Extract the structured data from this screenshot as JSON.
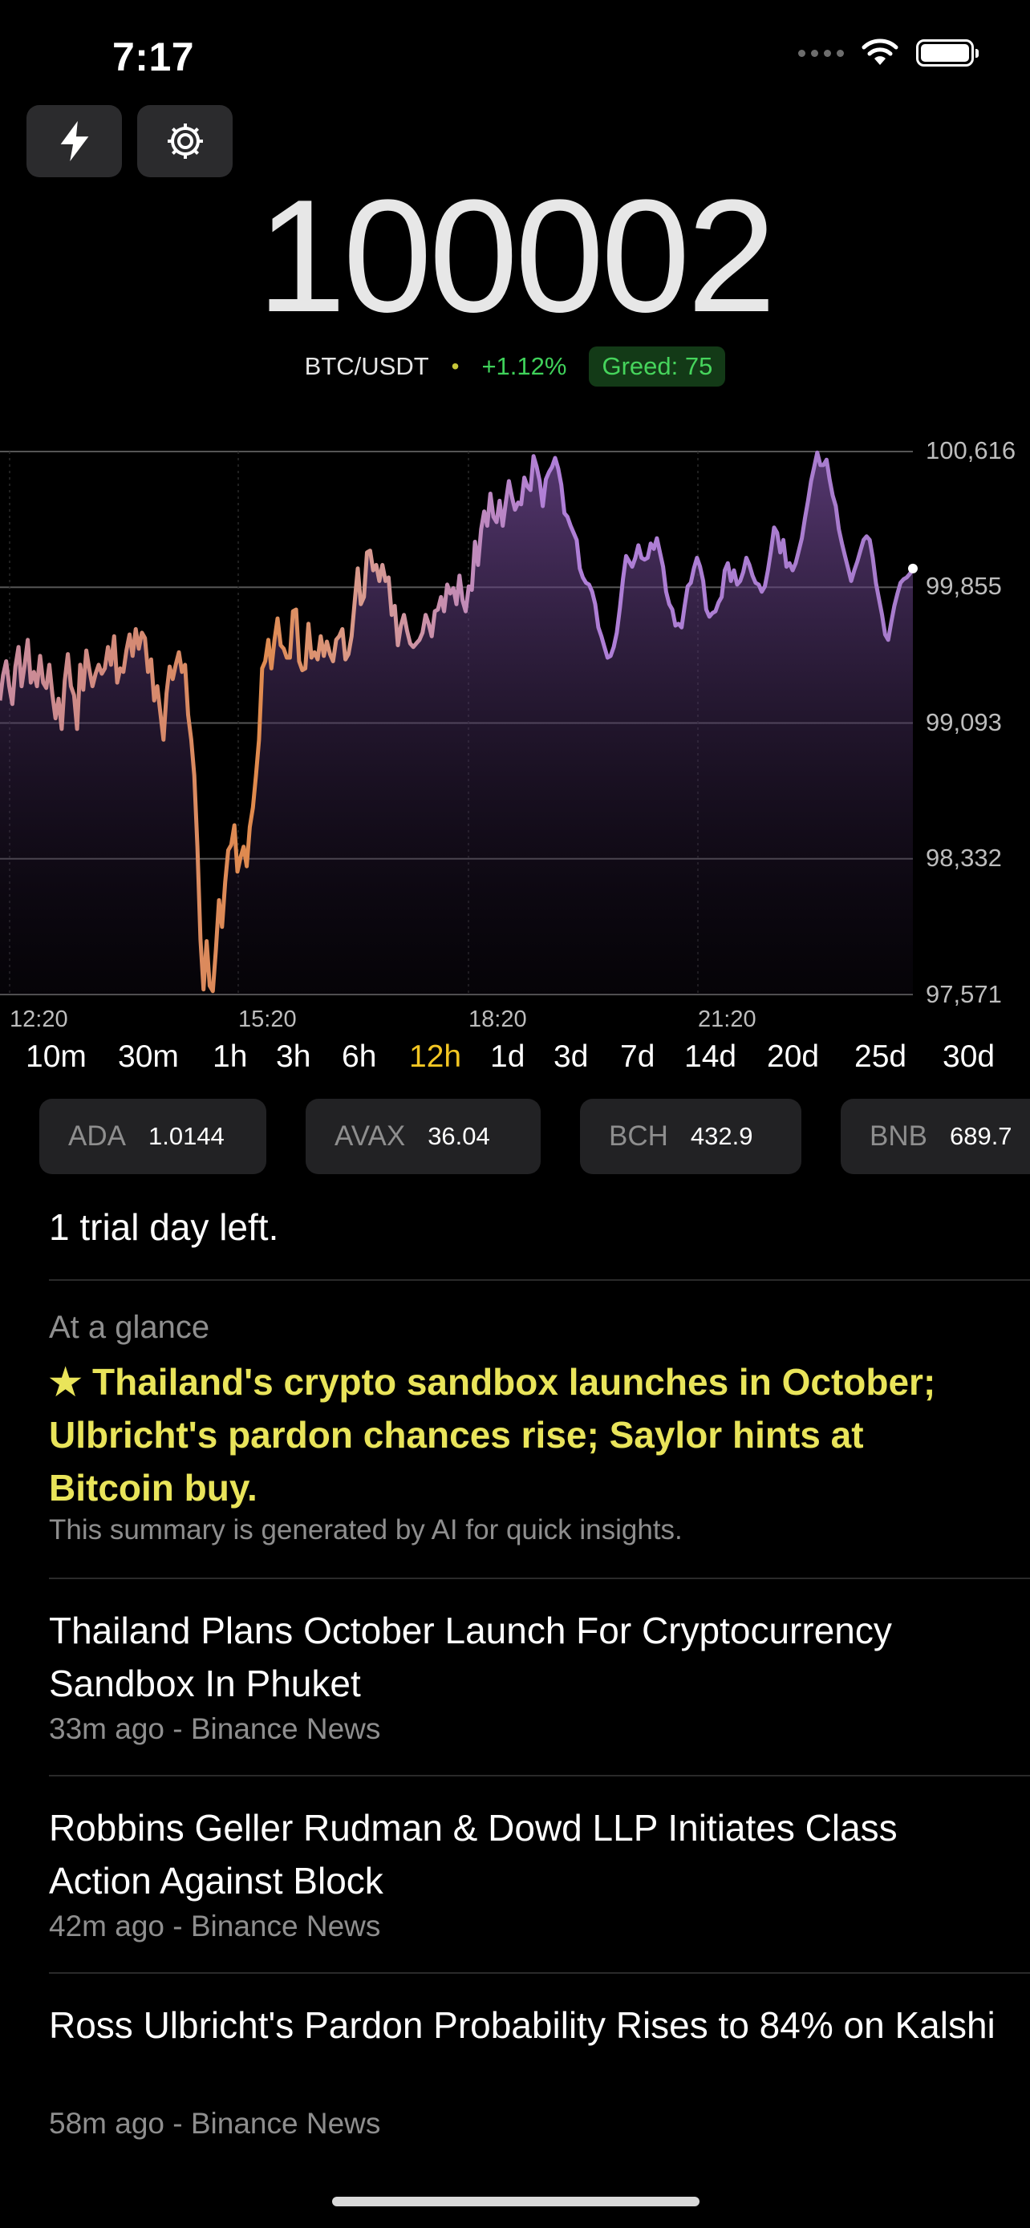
{
  "status_bar": {
    "time": "7:17"
  },
  "price": {
    "value": "100002",
    "pair": "BTC/USDT",
    "separator": "•",
    "change": "+1.12%",
    "greed": "Greed: 75"
  },
  "chart_data": {
    "type": "area",
    "y_ticks": [
      "100,616",
      "99,855",
      "99,093",
      "98,332",
      "97,571"
    ],
    "x_ticks": [
      "12:20",
      "15:20",
      "18:20",
      "21:20"
    ],
    "ylim": [
      97571,
      100616
    ],
    "points": [
      [
        0,
        99220
      ],
      [
        6,
        99360
      ],
      [
        12,
        99440
      ],
      [
        18,
        99300
      ],
      [
        24,
        99200
      ],
      [
        30,
        99410
      ],
      [
        36,
        99520
      ],
      [
        42,
        99300
      ],
      [
        48,
        99420
      ],
      [
        54,
        99560
      ],
      [
        60,
        99320
      ],
      [
        66,
        99380
      ],
      [
        72,
        99300
      ],
      [
        78,
        99470
      ],
      [
        84,
        99320
      ],
      [
        90,
        99290
      ],
      [
        96,
        99420
      ],
      [
        102,
        99250
      ],
      [
        108,
        99120
      ],
      [
        114,
        99230
      ],
      [
        120,
        99060
      ],
      [
        126,
        99330
      ],
      [
        132,
        99480
      ],
      [
        138,
        99300
      ],
      [
        144,
        99250
      ],
      [
        150,
        99060
      ],
      [
        156,
        99420
      ],
      [
        162,
        99280
      ],
      [
        168,
        99500
      ],
      [
        174,
        99390
      ],
      [
        180,
        99300
      ],
      [
        186,
        99370
      ],
      [
        192,
        99420
      ],
      [
        198,
        99370
      ],
      [
        204,
        99400
      ],
      [
        210,
        99520
      ],
      [
        216,
        99420
      ],
      [
        222,
        99580
      ],
      [
        228,
        99320
      ],
      [
        234,
        99400
      ],
      [
        240,
        99380
      ],
      [
        246,
        99500
      ],
      [
        252,
        99590
      ],
      [
        258,
        99470
      ],
      [
        264,
        99620
      ],
      [
        270,
        99510
      ],
      [
        276,
        99600
      ],
      [
        282,
        99570
      ],
      [
        288,
        99380
      ],
      [
        294,
        99450
      ],
      [
        300,
        99220
      ],
      [
        306,
        99300
      ],
      [
        312,
        99150
      ],
      [
        318,
        99000
      ],
      [
        324,
        99260
      ],
      [
        330,
        99410
      ],
      [
        336,
        99340
      ],
      [
        342,
        99420
      ],
      [
        348,
        99490
      ],
      [
        354,
        99380
      ],
      [
        360,
        99420
      ],
      [
        366,
        99140
      ],
      [
        372,
        99000
      ],
      [
        378,
        98800
      ],
      [
        384,
        98400
      ],
      [
        390,
        97880
      ],
      [
        396,
        97600
      ],
      [
        402,
        97870
      ],
      [
        408,
        97620
      ],
      [
        414,
        97590
      ],
      [
        420,
        97820
      ],
      [
        426,
        98100
      ],
      [
        432,
        97950
      ],
      [
        438,
        98200
      ],
      [
        444,
        98380
      ],
      [
        450,
        98410
      ],
      [
        456,
        98520
      ],
      [
        462,
        98260
      ],
      [
        468,
        98340
      ],
      [
        474,
        98400
      ],
      [
        480,
        98290
      ],
      [
        486,
        98510
      ],
      [
        492,
        98620
      ],
      [
        498,
        98800
      ],
      [
        504,
        99000
      ],
      [
        510,
        99400
      ],
      [
        516,
        99440
      ],
      [
        522,
        99560
      ],
      [
        528,
        99400
      ],
      [
        534,
        99560
      ],
      [
        540,
        99680
      ],
      [
        546,
        99530
      ],
      [
        552,
        99510
      ],
      [
        558,
        99460
      ],
      [
        564,
        99460
      ],
      [
        570,
        99720
      ],
      [
        576,
        99730
      ],
      [
        582,
        99440
      ],
      [
        588,
        99390
      ],
      [
        594,
        99400
      ],
      [
        600,
        99650
      ],
      [
        606,
        99460
      ],
      [
        612,
        99490
      ],
      [
        618,
        99450
      ],
      [
        624,
        99580
      ],
      [
        630,
        99470
      ],
      [
        636,
        99550
      ],
      [
        642,
        99480
      ],
      [
        648,
        99440
      ],
      [
        654,
        99560
      ],
      [
        660,
        99580
      ],
      [
        666,
        99620
      ],
      [
        672,
        99450
      ],
      [
        678,
        99480
      ],
      [
        684,
        99580
      ],
      [
        690,
        99770
      ],
      [
        696,
        99960
      ],
      [
        702,
        99760
      ],
      [
        708,
        99800
      ],
      [
        714,
        100050
      ],
      [
        720,
        100060
      ],
      [
        726,
        99950
      ],
      [
        732,
        99980
      ],
      [
        738,
        99890
      ],
      [
        744,
        99980
      ],
      [
        750,
        99890
      ],
      [
        756,
        99910
      ],
      [
        762,
        99700
      ],
      [
        768,
        99750
      ],
      [
        774,
        99530
      ],
      [
        780,
        99640
      ],
      [
        786,
        99700
      ],
      [
        792,
        99610
      ],
      [
        798,
        99540
      ],
      [
        804,
        99520
      ],
      [
        810,
        99540
      ],
      [
        816,
        99560
      ],
      [
        822,
        99600
      ],
      [
        828,
        99700
      ],
      [
        834,
        99650
      ],
      [
        840,
        99580
      ],
      [
        846,
        99720
      ],
      [
        852,
        99730
      ],
      [
        858,
        99800
      ],
      [
        864,
        99720
      ],
      [
        870,
        99870
      ],
      [
        876,
        99820
      ],
      [
        882,
        99850
      ],
      [
        888,
        99760
      ],
      [
        894,
        99920
      ],
      [
        900,
        99780
      ],
      [
        906,
        99720
      ],
      [
        912,
        99860
      ],
      [
        918,
        99840
      ],
      [
        924,
        100110
      ],
      [
        930,
        99980
      ],
      [
        936,
        100180
      ],
      [
        942,
        100280
      ],
      [
        948,
        100200
      ],
      [
        954,
        100380
      ],
      [
        960,
        100250
      ],
      [
        966,
        100220
      ],
      [
        972,
        100340
      ],
      [
        978,
        100200
      ],
      [
        984,
        100330
      ],
      [
        990,
        100450
      ],
      [
        996,
        100360
      ],
      [
        1002,
        100290
      ],
      [
        1008,
        100330
      ],
      [
        1014,
        100320
      ],
      [
        1020,
        100470
      ],
      [
        1026,
        100420
      ],
      [
        1032,
        100400
      ],
      [
        1038,
        100590
      ],
      [
        1044,
        100530
      ],
      [
        1050,
        100450
      ],
      [
        1056,
        100310
      ],
      [
        1062,
        100460
      ],
      [
        1068,
        100500
      ],
      [
        1074,
        100530
      ],
      [
        1080,
        100580
      ],
      [
        1086,
        100520
      ],
      [
        1092,
        100430
      ],
      [
        1098,
        100270
      ],
      [
        1104,
        100250
      ],
      [
        1110,
        100200
      ],
      [
        1116,
        100160
      ],
      [
        1122,
        100120
      ],
      [
        1128,
        99960
      ],
      [
        1134,
        99910
      ],
      [
        1140,
        99880
      ],
      [
        1146,
        99870
      ],
      [
        1152,
        99830
      ],
      [
        1158,
        99760
      ],
      [
        1164,
        99630
      ],
      [
        1170,
        99580
      ],
      [
        1176,
        99520
      ],
      [
        1182,
        99460
      ],
      [
        1188,
        99470
      ],
      [
        1194,
        99520
      ],
      [
        1200,
        99600
      ],
      [
        1206,
        99740
      ],
      [
        1212,
        99900
      ],
      [
        1218,
        100030
      ],
      [
        1224,
        100000
      ],
      [
        1230,
        99970
      ],
      [
        1236,
        100020
      ],
      [
        1242,
        100090
      ],
      [
        1248,
        100020
      ],
      [
        1254,
        100010
      ],
      [
        1260,
        100020
      ],
      [
        1266,
        100100
      ],
      [
        1272,
        100070
      ],
      [
        1278,
        100130
      ],
      [
        1284,
        100050
      ],
      [
        1290,
        99970
      ],
      [
        1296,
        99830
      ],
      [
        1302,
        99760
      ],
      [
        1308,
        99730
      ],
      [
        1314,
        99640
      ],
      [
        1320,
        99650
      ],
      [
        1326,
        99630
      ],
      [
        1332,
        99750
      ],
      [
        1338,
        99860
      ],
      [
        1344,
        99880
      ],
      [
        1350,
        99960
      ],
      [
        1356,
        100020
      ],
      [
        1362,
        99970
      ],
      [
        1368,
        99890
      ],
      [
        1374,
        99730
      ],
      [
        1380,
        99690
      ],
      [
        1386,
        99710
      ],
      [
        1392,
        99720
      ],
      [
        1398,
        99770
      ],
      [
        1404,
        99800
      ],
      [
        1410,
        99950
      ],
      [
        1416,
        99990
      ],
      [
        1422,
        99890
      ],
      [
        1428,
        99950
      ],
      [
        1434,
        99870
      ],
      [
        1440,
        99890
      ],
      [
        1446,
        99940
      ],
      [
        1452,
        100020
      ],
      [
        1458,
        99980
      ],
      [
        1464,
        99920
      ],
      [
        1470,
        99880
      ],
      [
        1476,
        99870
      ],
      [
        1482,
        99830
      ],
      [
        1488,
        99860
      ],
      [
        1494,
        99950
      ],
      [
        1500,
        100060
      ],
      [
        1506,
        100190
      ],
      [
        1512,
        100160
      ],
      [
        1518,
        100050
      ],
      [
        1524,
        100120
      ],
      [
        1530,
        99970
      ],
      [
        1536,
        99990
      ],
      [
        1542,
        99950
      ],
      [
        1548,
        99990
      ],
      [
        1554,
        100060
      ],
      [
        1560,
        100130
      ],
      [
        1566,
        100240
      ],
      [
        1572,
        100340
      ],
      [
        1578,
        100450
      ],
      [
        1584,
        100530
      ],
      [
        1590,
        100610
      ],
      [
        1596,
        100540
      ],
      [
        1602,
        100540
      ],
      [
        1608,
        100570
      ],
      [
        1614,
        100460
      ],
      [
        1620,
        100370
      ],
      [
        1626,
        100310
      ],
      [
        1632,
        100180
      ],
      [
        1638,
        100100
      ],
      [
        1644,
        100030
      ],
      [
        1650,
        99960
      ],
      [
        1656,
        99890
      ],
      [
        1662,
        99950
      ],
      [
        1668,
        100000
      ],
      [
        1674,
        100060
      ],
      [
        1680,
        100120
      ],
      [
        1686,
        100140
      ],
      [
        1692,
        100120
      ],
      [
        1698,
        100020
      ],
      [
        1704,
        99880
      ],
      [
        1710,
        99790
      ],
      [
        1716,
        99700
      ],
      [
        1722,
        99590
      ],
      [
        1728,
        99560
      ],
      [
        1734,
        99660
      ],
      [
        1740,
        99750
      ],
      [
        1746,
        99820
      ],
      [
        1752,
        99880
      ],
      [
        1758,
        99900
      ],
      [
        1764,
        99910
      ],
      [
        1770,
        99930
      ],
      [
        1776,
        99960
      ]
    ]
  },
  "ranges": [
    {
      "label": "10m"
    },
    {
      "label": "30m"
    },
    {
      "label": "1h"
    },
    {
      "label": "3h"
    },
    {
      "label": "6h"
    },
    {
      "label": "12h",
      "active": true
    },
    {
      "label": "1d"
    },
    {
      "label": "3d"
    },
    {
      "label": "7d"
    },
    {
      "label": "14d"
    },
    {
      "label": "20d"
    },
    {
      "label": "25d"
    },
    {
      "label": "30d"
    }
  ],
  "tickers": [
    {
      "symbol": "ADA",
      "value": "1.0144"
    },
    {
      "symbol": "AVAX",
      "value": "36.04"
    },
    {
      "symbol": "BCH",
      "value": "432.9"
    },
    {
      "symbol": "BNB",
      "value": "689.7"
    }
  ],
  "trial_text": "1 trial day left.",
  "glance": {
    "heading": "At a glance",
    "star": "★",
    "summary": "Thailand's crypto sandbox launches in October; Ulbricht's pardon chances rise; Saylor hints at Bitcoin buy.",
    "note": "This summary is generated by AI for quick insights."
  },
  "news": [
    {
      "title": "Thailand Plans October Launch For Cryptocurrency Sandbox In Phuket",
      "meta": "33m ago - Binance News"
    },
    {
      "title": "Robbins Geller Rudman & Dowd LLP Initiates Class Action Against Block",
      "meta": "42m ago - Binance News"
    },
    {
      "title": "Ross Ulbricht's Pardon Probability Rises to 84% on Kalshi",
      "meta": "58m ago - Binance News"
    }
  ],
  "colors": {
    "accent_yellow": "#f3c623",
    "up_green": "#3fd15a",
    "line_orange": "#e08a4c",
    "line_purple": "#b07fd8"
  }
}
